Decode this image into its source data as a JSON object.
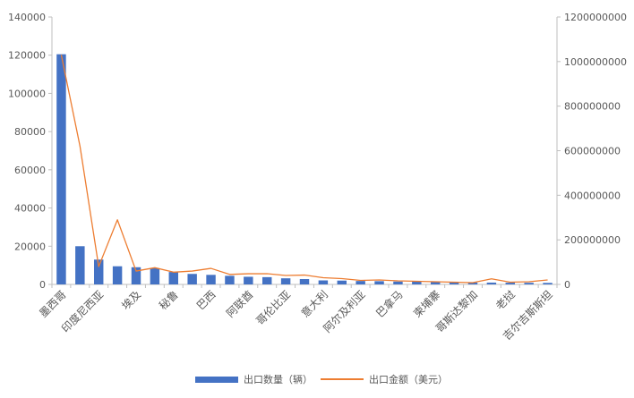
{
  "chart_data": {
    "type": "bar",
    "categories": [
      "墨西哥",
      "",
      "印度尼西亚",
      "",
      "埃及",
      "",
      "秘鲁",
      "",
      "巴西",
      "",
      "阿联酋",
      "",
      "哥伦比亚",
      "",
      "意大利",
      "",
      "阿尔及利亚",
      "",
      "巴拿马",
      "",
      "柬埔寨",
      "",
      "哥斯达黎加",
      "",
      "老挝",
      "",
      "吉尔吉斯斯坦"
    ],
    "series": [
      {
        "name": "出口数量（辆）",
        "type": "bar",
        "axis": "left",
        "color": "#4472C4",
        "values": [
          120500,
          20000,
          13000,
          9500,
          9000,
          8500,
          6500,
          5500,
          5000,
          4500,
          4000,
          3800,
          3200,
          2800,
          2100,
          2000,
          1800,
          1700,
          1500,
          1400,
          1200,
          1100,
          1000,
          950,
          900,
          850,
          800
        ]
      },
      {
        "name": "出口金额（美元）",
        "type": "line",
        "axis": "right",
        "color": "#ED7D31",
        "values": [
          1030000000,
          620000000,
          80000000,
          290000000,
          60000000,
          75000000,
          55000000,
          60000000,
          72000000,
          45000000,
          48000000,
          48000000,
          40000000,
          42000000,
          30000000,
          26000000,
          18000000,
          20000000,
          16000000,
          14000000,
          12000000,
          10000000,
          8000000,
          25000000,
          10000000,
          12000000,
          20000000
        ]
      }
    ],
    "y_left": {
      "min": 0,
      "max": 140000,
      "ticks": [
        "0",
        "20000",
        "40000",
        "60000",
        "80000",
        "100000",
        "120000",
        "140000"
      ]
    },
    "y_right": {
      "min": 0,
      "max": 1200000000,
      "ticks": [
        "0",
        "200000000",
        "400000000",
        "600000000",
        "800000000",
        "1000000000",
        "1200000000"
      ]
    },
    "grid": false,
    "legend_position": "bottom",
    "title": "",
    "xlabel": "",
    "ylabel": ""
  },
  "legend": {
    "bar_label": "出口数量（辆）",
    "line_label": "出口金额（美元）"
  }
}
